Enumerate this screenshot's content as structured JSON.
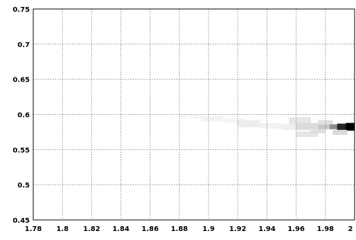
{
  "chart_data": {
    "type": "heatmap",
    "title": "",
    "xlabel": "",
    "ylabel": "",
    "xlim": [
      1.78,
      2.0
    ],
    "ylim": [
      0.45,
      0.75
    ],
    "grid": true,
    "x_ticks": [
      "1.78",
      "1.8",
      "1.82",
      "1.84",
      "1.86",
      "1.88",
      "1.9",
      "1.92",
      "1.94",
      "1.96",
      "1.98",
      "2"
    ],
    "y_ticks": [
      "0.75",
      "0.7",
      "0.65",
      "0.6",
      "0.55",
      "0.5",
      "0.45"
    ],
    "x_tick_values": [
      1.78,
      1.8,
      1.82,
      1.84,
      1.86,
      1.88,
      1.9,
      1.92,
      1.94,
      1.96,
      1.98,
      2.0
    ],
    "y_tick_values": [
      0.75,
      0.7,
      0.65,
      0.6,
      0.55,
      0.5,
      0.45
    ],
    "cells": [
      {
        "x0": 1.88,
        "x1": 1.895,
        "y0": 0.594,
        "y1": 0.6,
        "intensity": 0.03
      },
      {
        "x0": 1.895,
        "x1": 1.91,
        "y0": 0.59,
        "y1": 0.597,
        "intensity": 0.05
      },
      {
        "x0": 1.91,
        "x1": 1.925,
        "y0": 0.588,
        "y1": 0.595,
        "intensity": 0.04
      },
      {
        "x0": 1.92,
        "x1": 1.935,
        "y0": 0.582,
        "y1": 0.592,
        "intensity": 0.07
      },
      {
        "x0": 1.935,
        "x1": 1.95,
        "y0": 0.58,
        "y1": 0.588,
        "intensity": 0.05
      },
      {
        "x0": 1.95,
        "x1": 1.96,
        "y0": 0.578,
        "y1": 0.586,
        "intensity": 0.06
      },
      {
        "x0": 1.955,
        "x1": 1.97,
        "y0": 0.586,
        "y1": 0.596,
        "intensity": 0.1
      },
      {
        "x0": 1.96,
        "x1": 1.975,
        "y0": 0.578,
        "y1": 0.588,
        "intensity": 0.14
      },
      {
        "x0": 1.96,
        "x1": 1.975,
        "y0": 0.568,
        "y1": 0.576,
        "intensity": 0.1
      },
      {
        "x0": 1.97,
        "x1": 1.98,
        "y0": 0.573,
        "y1": 0.58,
        "intensity": 0.12
      },
      {
        "x0": 1.975,
        "x1": 1.983,
        "y0": 0.579,
        "y1": 0.586,
        "intensity": 0.22
      },
      {
        "x0": 1.975,
        "x1": 1.985,
        "y0": 0.586,
        "y1": 0.592,
        "intensity": 0.12
      },
      {
        "x0": 1.983,
        "x1": 1.99,
        "y0": 0.579,
        "y1": 0.586,
        "intensity": 0.45
      },
      {
        "x0": 1.988,
        "x1": 1.995,
        "y0": 0.578,
        "y1": 0.587,
        "intensity": 0.85
      },
      {
        "x0": 1.994,
        "x1": 2.0,
        "y0": 0.577,
        "y1": 0.588,
        "intensity": 1.0
      },
      {
        "x0": 1.985,
        "x1": 1.995,
        "y0": 0.571,
        "y1": 0.578,
        "intensity": 0.15
      }
    ],
    "colors": {
      "grid": "#888888",
      "frame": "#000000",
      "high": "#000000",
      "low": "#ffffff"
    }
  }
}
